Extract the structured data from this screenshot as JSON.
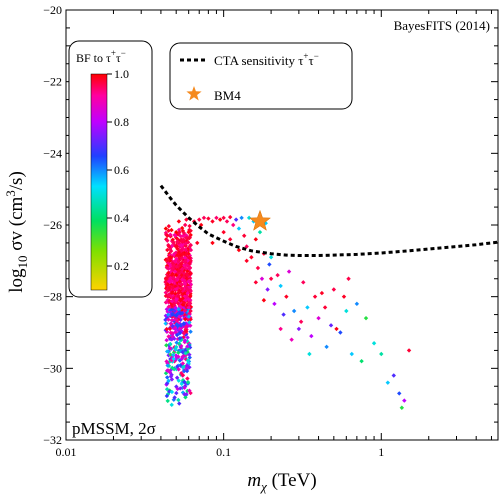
{
  "chart_data": {
    "type": "scatter",
    "xlabel_main": "m",
    "xlabel_sub": "χ",
    "xlabel_unit": " (TeV)",
    "ylabel_main": "log",
    "ylabel_sub": "10",
    "ylabel_unit": " σv (cm",
    "ylabel_sup": "3",
    "ylabel_end": "/s)",
    "x_scale": "log",
    "xlim": [
      0.01,
      5.5
    ],
    "ylim": [
      -32,
      -20
    ],
    "x_ticks": [
      {
        "value": 0.01,
        "label": "0.01"
      },
      {
        "value": 0.1,
        "label": "0.1"
      },
      {
        "value": 1,
        "label": "1"
      }
    ],
    "y_ticks": [
      {
        "value": -32,
        "label": "−32"
      },
      {
        "value": -30,
        "label": "−30"
      },
      {
        "value": -28,
        "label": "−28"
      },
      {
        "value": -26,
        "label": "−26"
      },
      {
        "value": -24,
        "label": "−24"
      },
      {
        "value": -22,
        "label": "−22"
      },
      {
        "value": -20,
        "label": "−20"
      }
    ],
    "top_right_label": "BayesFITS (2014)",
    "bottom_left_label": "pMSSM, 2σ",
    "legend": {
      "position": "top-center",
      "cta_label": "CTA sensitivity τ",
      "cta_label_sup": "+",
      "cta_label_mid": "τ",
      "cta_label_sup2": "−",
      "bm4_label": "BM4"
    },
    "colorbar": {
      "title": "BF to τ",
      "title_sup": "+",
      "title_mid": "τ",
      "title_sup2": "−",
      "range": [
        0.1,
        1.0
      ],
      "ticks": [
        {
          "value": 1.0,
          "label": "1.0"
        },
        {
          "value": 0.8,
          "label": "0.8"
        },
        {
          "value": 0.6,
          "label": "0.6"
        },
        {
          "value": 0.4,
          "label": "0.4"
        },
        {
          "value": 0.2,
          "label": "0.2"
        }
      ],
      "colors": [
        "#ffd700",
        "#00e000",
        "#00e0ff",
        "#2030ff",
        "#ff00ff",
        "#ff0000"
      ]
    },
    "cta_curve": {
      "x": [
        0.04,
        0.045,
        0.05,
        0.06,
        0.07,
        0.08,
        0.1,
        0.12,
        0.15,
        0.2,
        0.25,
        0.3,
        0.4,
        0.5,
        0.7,
        1.0,
        1.5,
        2.0,
        3.0,
        4.0,
        5.5
      ],
      "y": [
        -24.9,
        -25.2,
        -25.45,
        -25.8,
        -26.05,
        -26.25,
        -26.45,
        -26.6,
        -26.72,
        -26.8,
        -26.84,
        -26.85,
        -26.85,
        -26.84,
        -26.82,
        -26.78,
        -26.72,
        -26.67,
        -26.6,
        -26.55,
        -26.48
      ]
    },
    "bm4": {
      "x": 0.17,
      "y": -25.9
    },
    "scatter_points": [
      {
        "x": 0.043,
        "y": -26.1,
        "bf": 1.0
      },
      {
        "x": 0.044,
        "y": -26.3,
        "bf": 0.98
      },
      {
        "x": 0.045,
        "y": -26.6,
        "bf": 0.97
      },
      {
        "x": 0.046,
        "y": -26.9,
        "bf": 0.99
      },
      {
        "x": 0.048,
        "y": -26.5,
        "bf": 0.95
      },
      {
        "x": 0.05,
        "y": -26.2,
        "bf": 1.0
      },
      {
        "x": 0.052,
        "y": -25.9,
        "bf": 0.99
      },
      {
        "x": 0.054,
        "y": -26.4,
        "bf": 0.96
      },
      {
        "x": 0.055,
        "y": -26.8,
        "bf": 0.98
      },
      {
        "x": 0.057,
        "y": -26.0,
        "bf": 0.95
      },
      {
        "x": 0.058,
        "y": -25.85,
        "bf": 0.97
      },
      {
        "x": 0.06,
        "y": -26.2,
        "bf": 0.99
      },
      {
        "x": 0.062,
        "y": -26.7,
        "bf": 0.93
      },
      {
        "x": 0.065,
        "y": -25.9,
        "bf": 0.97
      },
      {
        "x": 0.068,
        "y": -26.5,
        "bf": 0.98
      },
      {
        "x": 0.07,
        "y": -25.85,
        "bf": 0.96
      },
      {
        "x": 0.072,
        "y": -26.0,
        "bf": 0.99
      },
      {
        "x": 0.075,
        "y": -25.8,
        "bf": 0.95
      },
      {
        "x": 0.08,
        "y": -25.82,
        "bf": 0.97
      },
      {
        "x": 0.085,
        "y": -25.9,
        "bf": 0.98
      },
      {
        "x": 0.09,
        "y": -25.8,
        "bf": 0.94
      },
      {
        "x": 0.095,
        "y": -25.85,
        "bf": 0.99
      },
      {
        "x": 0.1,
        "y": -25.8,
        "bf": 0.96
      },
      {
        "x": 0.105,
        "y": -25.9,
        "bf": 0.95
      },
      {
        "x": 0.11,
        "y": -25.78,
        "bf": 0.97
      },
      {
        "x": 0.115,
        "y": -26.0,
        "bf": 0.93
      },
      {
        "x": 0.12,
        "y": -25.85,
        "bf": 0.7
      },
      {
        "x": 0.125,
        "y": -26.1,
        "bf": 0.55
      },
      {
        "x": 0.13,
        "y": -25.8,
        "bf": 0.6
      },
      {
        "x": 0.135,
        "y": -26.3,
        "bf": 0.97
      },
      {
        "x": 0.14,
        "y": -26.6,
        "bf": 0.95
      },
      {
        "x": 0.145,
        "y": -25.8,
        "bf": 0.5
      },
      {
        "x": 0.15,
        "y": -26.9,
        "bf": 0.98
      },
      {
        "x": 0.155,
        "y": -25.9,
        "bf": 0.55
      },
      {
        "x": 0.16,
        "y": -26.4,
        "bf": 0.99
      },
      {
        "x": 0.165,
        "y": -27.2,
        "bf": 0.96
      },
      {
        "x": 0.17,
        "y": -26.2,
        "bf": 0.45
      },
      {
        "x": 0.175,
        "y": -27.5,
        "bf": 0.85
      },
      {
        "x": 0.18,
        "y": -26.8,
        "bf": 0.97
      },
      {
        "x": 0.185,
        "y": -25.95,
        "bf": 0.55
      },
      {
        "x": 0.19,
        "y": -27.8,
        "bf": 0.75
      },
      {
        "x": 0.195,
        "y": -27.1,
        "bf": 0.65
      },
      {
        "x": 0.2,
        "y": -26.9,
        "bf": 0.5
      },
      {
        "x": 0.21,
        "y": -28.2,
        "bf": 0.8
      },
      {
        "x": 0.22,
        "y": -27.4,
        "bf": 0.95
      },
      {
        "x": 0.23,
        "y": -27.7,
        "bf": 0.55
      },
      {
        "x": 0.24,
        "y": -28.5,
        "bf": 0.7
      },
      {
        "x": 0.25,
        "y": -28.0,
        "bf": 0.98
      },
      {
        "x": 0.26,
        "y": -27.3,
        "bf": 0.85
      },
      {
        "x": 0.28,
        "y": -28.4,
        "bf": 0.6
      },
      {
        "x": 0.3,
        "y": -28.9,
        "bf": 0.75
      },
      {
        "x": 0.32,
        "y": -27.6,
        "bf": 0.95
      },
      {
        "x": 0.34,
        "y": -28.3,
        "bf": 0.55
      },
      {
        "x": 0.36,
        "y": -29.1,
        "bf": 0.8
      },
      {
        "x": 0.38,
        "y": -28.0,
        "bf": 0.97
      },
      {
        "x": 0.4,
        "y": -28.6,
        "bf": 0.85
      },
      {
        "x": 0.42,
        "y": -27.9,
        "bf": 0.98
      },
      {
        "x": 0.45,
        "y": -29.4,
        "bf": 0.6
      },
      {
        "x": 0.48,
        "y": -28.8,
        "bf": 0.72
      },
      {
        "x": 0.5,
        "y": -27.8,
        "bf": 0.96
      },
      {
        "x": 0.55,
        "y": -29.0,
        "bf": 0.65
      },
      {
        "x": 0.6,
        "y": -28.4,
        "bf": 0.5
      },
      {
        "x": 0.65,
        "y": -29.6,
        "bf": 0.55
      },
      {
        "x": 0.7,
        "y": -28.2,
        "bf": 0.6
      },
      {
        "x": 0.75,
        "y": -29.8,
        "bf": 0.4
      },
      {
        "x": 0.8,
        "y": -28.6,
        "bf": 0.35
      },
      {
        "x": 0.9,
        "y": -29.3,
        "bf": 0.5
      },
      {
        "x": 1.0,
        "y": -29.6,
        "bf": 0.45
      },
      {
        "x": 1.1,
        "y": -30.4,
        "bf": 0.55
      },
      {
        "x": 1.2,
        "y": -30.2,
        "bf": 0.7
      },
      {
        "x": 1.3,
        "y": -30.7,
        "bf": 0.65
      },
      {
        "x": 1.35,
        "y": -31.1,
        "bf": 0.35
      },
      {
        "x": 1.4,
        "y": -30.9,
        "bf": 0.8
      },
      {
        "x": 1.5,
        "y": -29.5,
        "bf": 0.97
      },
      {
        "x": 0.085,
        "y": -26.5,
        "bf": 0.99
      },
      {
        "x": 0.1,
        "y": -26.2,
        "bf": 0.98
      },
      {
        "x": 0.11,
        "y": -26.4,
        "bf": 0.97
      },
      {
        "x": 0.125,
        "y": -26.7,
        "bf": 0.99
      },
      {
        "x": 0.14,
        "y": -27.0,
        "bf": 0.98
      },
      {
        "x": 0.16,
        "y": -27.6,
        "bf": 0.97
      },
      {
        "x": 0.18,
        "y": -28.1,
        "bf": 0.99
      },
      {
        "x": 0.2,
        "y": -27.5,
        "bf": 0.96
      },
      {
        "x": 0.23,
        "y": -28.9,
        "bf": 0.92
      },
      {
        "x": 0.27,
        "y": -29.2,
        "bf": 0.88
      },
      {
        "x": 0.31,
        "y": -28.7,
        "bf": 0.95
      },
      {
        "x": 0.35,
        "y": -29.6,
        "bf": 0.5
      },
      {
        "x": 0.44,
        "y": -28.3,
        "bf": 0.97
      },
      {
        "x": 0.52,
        "y": -28.9,
        "bf": 0.99
      },
      {
        "x": 0.58,
        "y": -28.0,
        "bf": 0.98
      },
      {
        "x": 0.62,
        "y": -27.5,
        "bf": 0.96
      }
    ],
    "cluster": {
      "x_min": 0.04,
      "x_max": 0.062,
      "y_top": -26.0,
      "y_bottom": -31.2
    }
  }
}
